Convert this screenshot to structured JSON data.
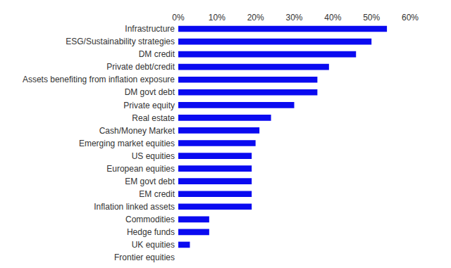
{
  "chart_data": {
    "type": "bar",
    "orientation": "horizontal",
    "categories": [
      "Infrastructure",
      "ESG/Sustainability strategies",
      "DM credit",
      "Private debt/credit",
      "Assets benefiting from inflation exposure",
      "DM govt debt",
      "Private equity",
      "Real estate",
      "Cash/Money Market",
      "Emerging market equities",
      "US equities",
      "European equities",
      "EM govt debt",
      "EM credit",
      "Inflation linked assets",
      "Commodities",
      "Hedge funds",
      "UK equities",
      "Frontier equities"
    ],
    "values": [
      54,
      50,
      46,
      39,
      36,
      36,
      30,
      24,
      21,
      20,
      19,
      19,
      19,
      19,
      19,
      8,
      8,
      3,
      0
    ],
    "color": "#0a0af0",
    "xlim": [
      0,
      60
    ],
    "xticks": [
      {
        "value": 0,
        "label": "0%"
      },
      {
        "value": 10,
        "label": "10%"
      },
      {
        "value": 20,
        "label": "20%"
      },
      {
        "value": 30,
        "label": "30%"
      },
      {
        "value": 40,
        "label": "40%"
      },
      {
        "value": 50,
        "label": "50%"
      },
      {
        "value": 60,
        "label": "60%"
      }
    ],
    "grid": false
  }
}
